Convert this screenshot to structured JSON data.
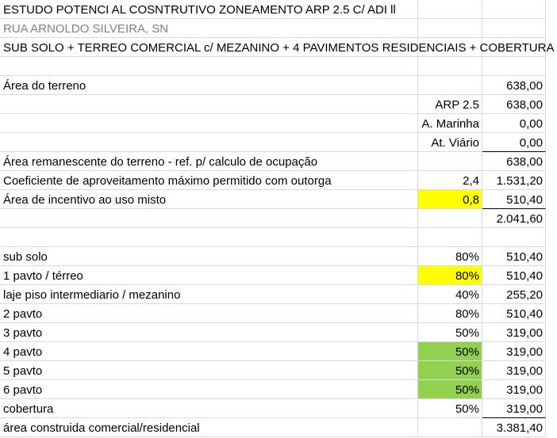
{
  "sheet": {
    "rows": [
      {
        "a": "ESTUDO POTENCI AL COSNTRUTIVO ZONEAMENTO ARP 2.5 C/ ADI ll"
      },
      {
        "a": "RUA ARNOLDO SILVEIRA, SN",
        "a_color": "#7f7f7f"
      },
      {
        "a": "SUB SOLO + TERREO COMERCIAL c/ MEZANINO + 4 PAVIMENTOS RESIDENCIAIS + COBERTURA"
      },
      {},
      {
        "a": "Área do terreno",
        "c": "638,00"
      },
      {
        "b": "ARP 2.5",
        "c": "638,00"
      },
      {
        "b": "A. Marinha",
        "c": "0,00"
      },
      {
        "b": "At. Viário",
        "c": "0,00",
        "rule": true
      },
      {
        "a": "Área remanescente do terreno - ref. p/ calculo de ocupação",
        "c": "638,00"
      },
      {
        "a": "Coeficiente de aproveitamento máximo permitido com outorga",
        "b": "2,4",
        "c": "1.531,20"
      },
      {
        "a": "Área de incentivo ao uso misto",
        "b": "0,8",
        "c": "510,40",
        "b_fill": "#ffff00",
        "rule": true
      },
      {
        "c": "2.041,60"
      },
      {},
      {
        "a": "sub solo",
        "b": "80%",
        "c": "510,40"
      },
      {
        "a": "1 pavto / térreo",
        "b": "80%",
        "c": "510,40",
        "b_fill": "#ffff00"
      },
      {
        "a": "laje piso intermediario / mezanino",
        "b": "40%",
        "c": "255,20"
      },
      {
        "a": "2 pavto",
        "b": "80%",
        "c": "510,40"
      },
      {
        "a": "3 pavto",
        "b": "50%",
        "c": "319,00"
      },
      {
        "a": "4 pavto",
        "b": "50%",
        "c": "319,00",
        "b_fill": "#92d050"
      },
      {
        "a": "5 pavto",
        "b": "50%",
        "c": "319,00",
        "b_fill": "#92d050"
      },
      {
        "a": "6 pavto",
        "b": "50%",
        "c": "319,00",
        "b_fill": "#92d050"
      },
      {
        "a": "cobertura",
        "b": "50%",
        "c": "319,00",
        "rule": true
      },
      {
        "a": "área construida comercial/residencial",
        "c": "3.381,40"
      }
    ]
  }
}
